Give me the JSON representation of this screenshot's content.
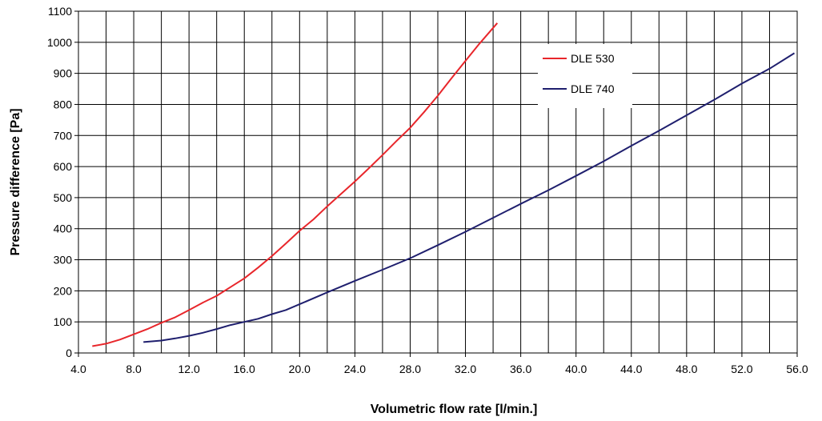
{
  "chart_data": {
    "type": "line",
    "xlabel": "Volumetric flow rate [l/min.]",
    "ylabel": "Pressure difference [Pa]",
    "xlim": [
      4.0,
      56.0
    ],
    "ylim": [
      0,
      1100
    ],
    "x_ticks": [
      "4.0",
      "8.0",
      "12.0",
      "16.0",
      "20.0",
      "24.0",
      "28.0",
      "32.0",
      "36.0",
      "40.0",
      "44.0",
      "48.0",
      "52.0",
      "56.0"
    ],
    "y_ticks": [
      "0",
      "100",
      "200",
      "300",
      "400",
      "500",
      "600",
      "700",
      "800",
      "900",
      "1000",
      "1100"
    ],
    "x_gridlines_every": 2,
    "grid": true,
    "legend_position": "top-right",
    "series": [
      {
        "name": "DLE 530",
        "color": "#e8262b",
        "x": [
          5.0,
          6.0,
          7.0,
          8.0,
          9.0,
          10.0,
          11.0,
          12.0,
          13.0,
          14.0,
          15.0,
          16.0,
          17.0,
          18.0,
          19.0,
          20.0,
          21.0,
          22.0,
          23.0,
          24.0,
          25.0,
          26.0,
          27.0,
          28.0,
          29.0,
          30.0,
          31.0,
          32.0,
          33.0,
          34.3
        ],
        "y": [
          22,
          30,
          43,
          60,
          77,
          97,
          115,
          138,
          162,
          184,
          212,
          240,
          275,
          312,
          352,
          393,
          430,
          472,
          512,
          552,
          594,
          637,
          682,
          725,
          775,
          828,
          885,
          940,
          995,
          1062
        ]
      },
      {
        "name": "DLE 740",
        "color": "#1f1f6e",
        "x": [
          8.7,
          10.0,
          11.0,
          12.0,
          13.0,
          14.0,
          15.0,
          16.0,
          17.0,
          18.0,
          19.0,
          20.0,
          22.0,
          24.0,
          26.0,
          28.0,
          30.0,
          32.0,
          34.0,
          36.0,
          38.0,
          40.0,
          42.0,
          44.0,
          46.0,
          48.0,
          50.0,
          52.0,
          54.0,
          55.8
        ],
        "y": [
          35,
          40,
          47,
          55,
          65,
          77,
          90,
          100,
          110,
          125,
          138,
          157,
          195,
          232,
          268,
          305,
          347,
          390,
          435,
          480,
          524,
          570,
          617,
          667,
          715,
          765,
          815,
          867,
          915,
          965
        ]
      }
    ]
  }
}
